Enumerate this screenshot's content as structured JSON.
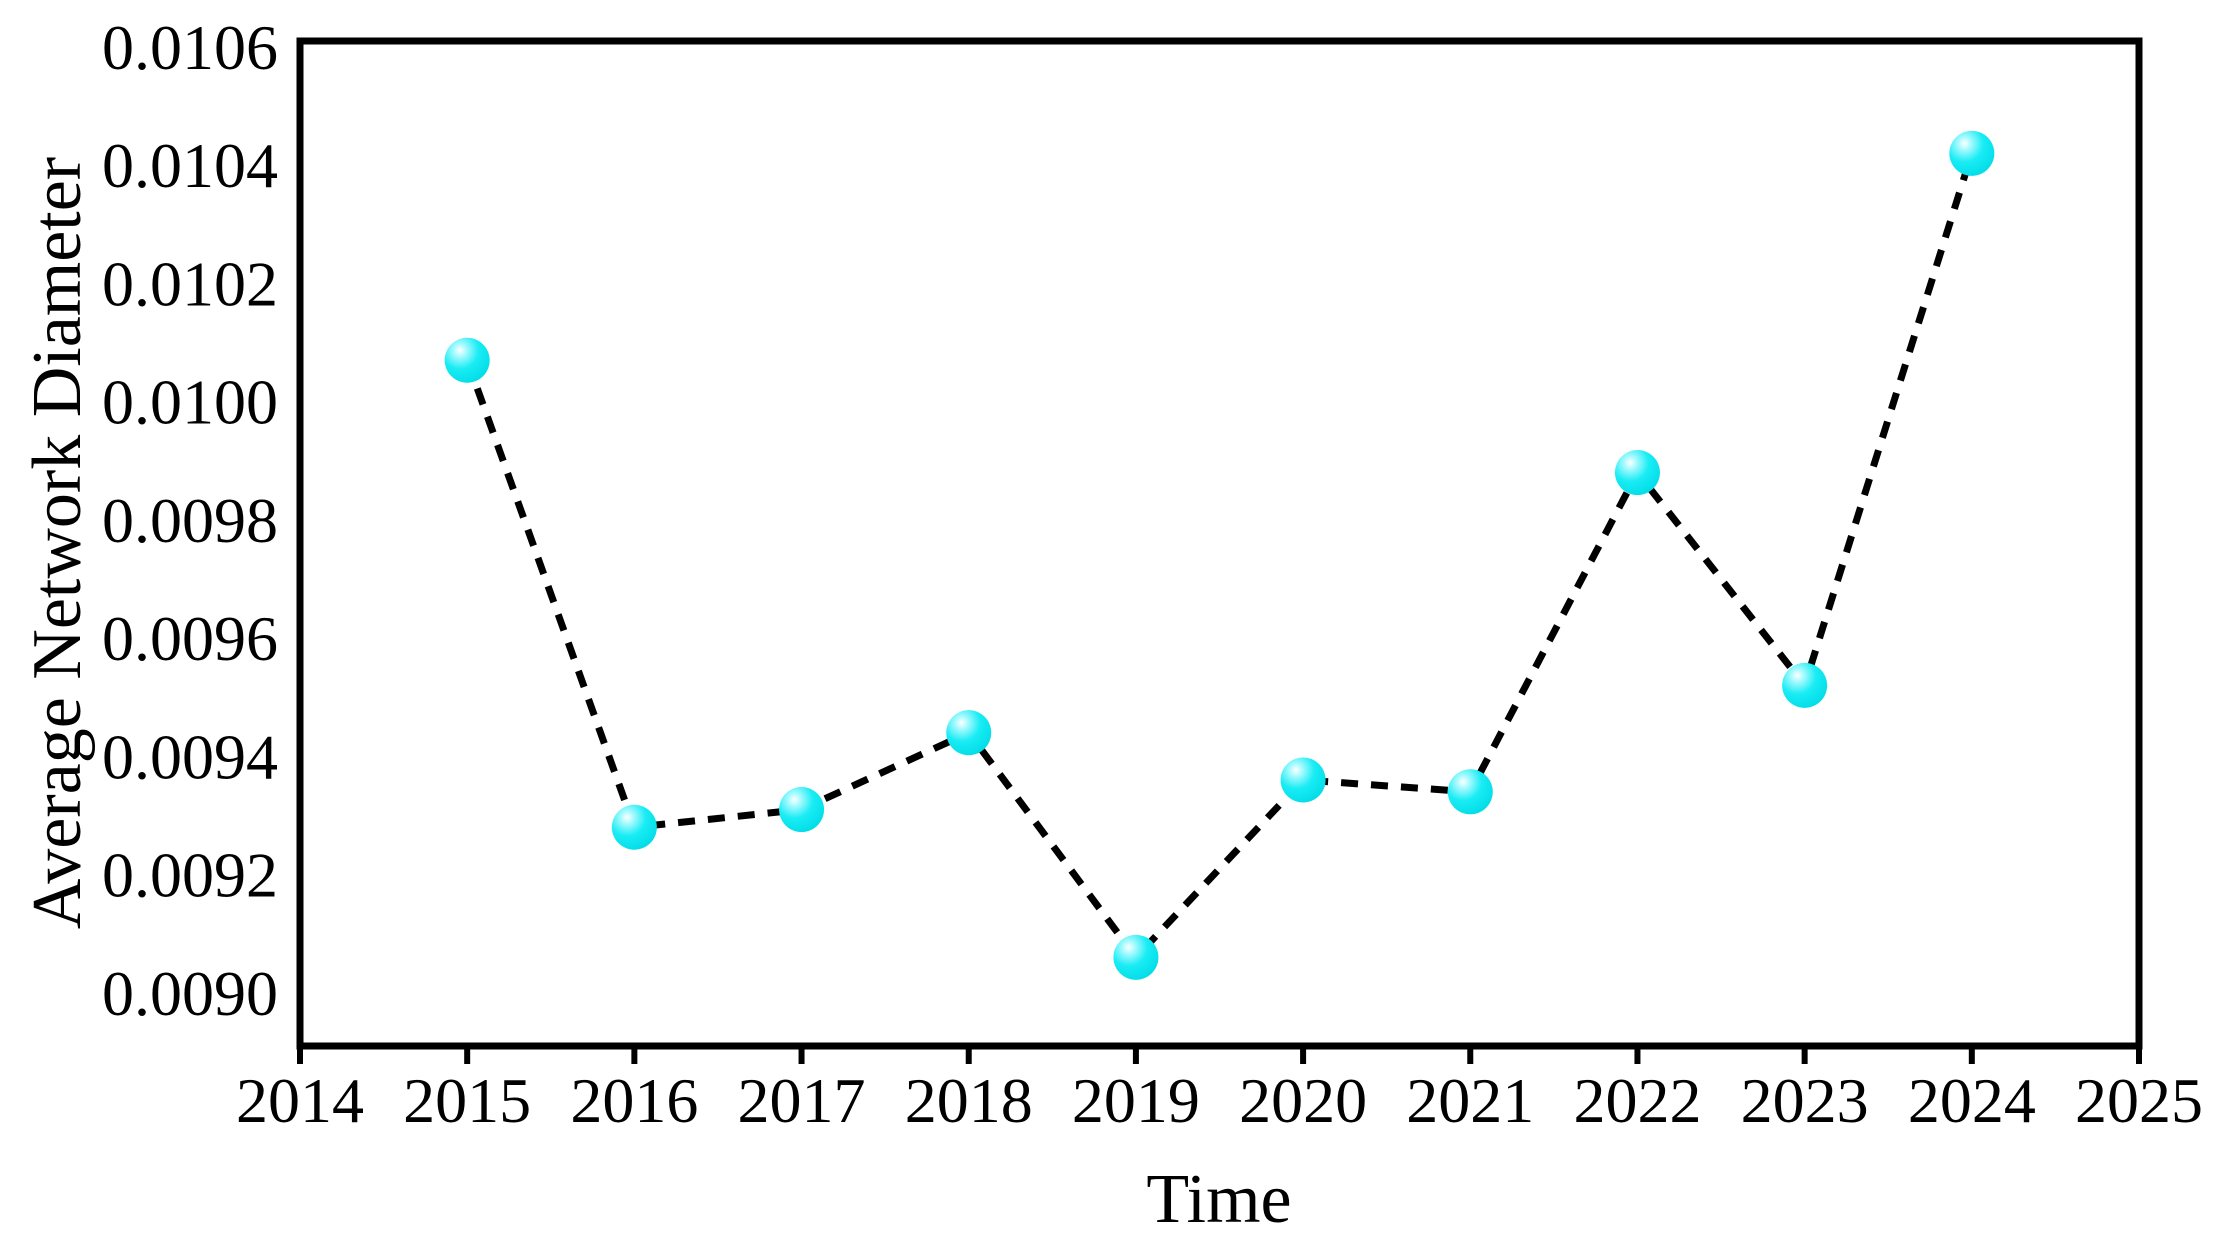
{
  "chart_data": {
    "type": "line",
    "title": "",
    "xlabel": "Time",
    "ylabel": "Average Network Diameter",
    "x": [
      2015,
      2016,
      2017,
      2018,
      2019,
      2020,
      2021,
      2022,
      2023,
      2024
    ],
    "series": [
      {
        "name": "Average Network Diameter",
        "values": [
          0.01007,
          0.00928,
          0.00931,
          0.00944,
          0.00906,
          0.00936,
          0.00934,
          0.00988,
          0.00952,
          0.01042
        ]
      }
    ],
    "x_ticks": [
      2014,
      2015,
      2016,
      2017,
      2018,
      2019,
      2020,
      2021,
      2022,
      2023,
      2024,
      2025
    ],
    "y_ticks": [
      0.0106,
      0.0104,
      0.0102,
      0.01,
      0.0098,
      0.0096,
      0.0094,
      0.0092,
      0.009
    ],
    "y_tick_decimals": 4,
    "xlim": [
      2014,
      2025
    ],
    "ylim": [
      0.00891,
      0.01061
    ],
    "grid": false,
    "legend": false,
    "line_style": "dashed",
    "line_color": "#000000",
    "axis_color": "#000000",
    "text_color": "#000000",
    "background_color": "#ffffff",
    "marker": {
      "shape": "sphere",
      "fill": "#00e6f0",
      "highlight": "#ffffff",
      "gradient": [
        {
          "offset": "0%",
          "color": "#ffffff"
        },
        {
          "offset": "16%",
          "color": "#aefbff"
        },
        {
          "offset": "52%",
          "color": "#19ecf4"
        },
        {
          "offset": "100%",
          "color": "#00dbe6"
        }
      ]
    }
  }
}
